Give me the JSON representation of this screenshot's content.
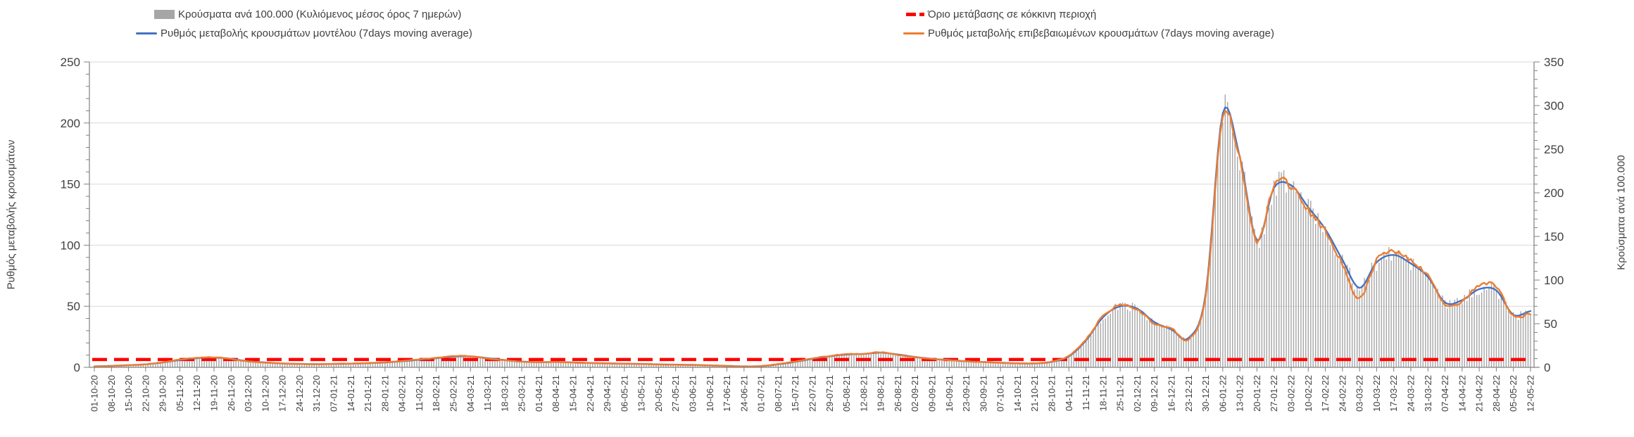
{
  "chart_data": {
    "type": "bar",
    "note": "Composite chart: daily bars (cases per 100.000, 7-day rolling average, right axis) with two 7-day moving-average rate-of-change lines (left axis) and a constant red threshold line. Values below are read at weekly resolution at each x tick label.",
    "categories": [
      "01-10-20",
      "08-10-20",
      "15-10-20",
      "22-10-20",
      "29-10-20",
      "05-11-20",
      "12-11-20",
      "19-11-20",
      "26-11-20",
      "03-12-20",
      "10-12-20",
      "17-12-20",
      "24-12-20",
      "31-12-20",
      "07-01-21",
      "14-01-21",
      "21-01-21",
      "28-01-21",
      "04-02-21",
      "11-02-21",
      "18-02-21",
      "25-02-21",
      "04-03-21",
      "11-03-21",
      "18-03-21",
      "25-03-21",
      "01-04-21",
      "08-04-21",
      "15-04-21",
      "22-04-21",
      "29-04-21",
      "06-05-21",
      "13-05-21",
      "20-05-21",
      "27-05-21",
      "03-06-21",
      "10-06-21",
      "17-06-21",
      "24-06-21",
      "01-07-21",
      "08-07-21",
      "15-07-21",
      "22-07-21",
      "29-07-21",
      "05-08-21",
      "12-08-21",
      "19-08-21",
      "26-08-21",
      "02-09-21",
      "09-09-21",
      "16-09-21",
      "23-09-21",
      "30-09-21",
      "07-10-21",
      "14-10-21",
      "21-10-21",
      "28-10-21",
      "04-11-21",
      "11-11-21",
      "18-11-21",
      "25-11-21",
      "02-12-21",
      "09-12-21",
      "16-12-21",
      "23-12-21",
      "30-12-21",
      "06-01-22",
      "13-01-22",
      "20-01-22",
      "27-01-22",
      "03-02-22",
      "10-02-22",
      "17-02-22",
      "24-02-22",
      "03-03-22",
      "10-03-22",
      "17-03-22",
      "24-03-22",
      "31-03-22",
      "07-04-22",
      "14-04-22",
      "21-04-22",
      "28-04-22",
      "05-05-22",
      "12-05-22"
    ],
    "series": [
      {
        "name": "Κρούσματα ανά 100.000 (Κυλιόμενος μέσος όρος 7 ημερών)",
        "type": "bar",
        "axis": "right",
        "color": "#a6a6a6",
        "values": [
          1,
          1.7,
          2.5,
          3.5,
          5.5,
          8.5,
          10.5,
          11,
          9.8,
          7,
          5.5,
          4.5,
          4,
          3.6,
          4,
          4.2,
          4.8,
          5.6,
          7,
          8.7,
          10.5,
          12.3,
          12.6,
          10.5,
          8.4,
          6.7,
          5.9,
          6.2,
          5.6,
          5,
          4.6,
          4.2,
          3.9,
          3.4,
          3.1,
          2.8,
          2.2,
          1.7,
          1.1,
          1.4,
          3.5,
          6.3,
          9.8,
          12.6,
          14.7,
          15.4,
          16.8,
          14.7,
          11.9,
          9.8,
          8.4,
          7,
          6.2,
          5.3,
          4.6,
          4.5,
          6.3,
          12.6,
          30.8,
          57,
          70,
          67,
          52,
          43,
          34,
          84,
          292,
          241,
          146,
          206,
          209,
          183,
          158,
          123,
          91,
          120,
          129,
          119,
          104,
          74,
          77,
          90,
          88,
          60,
          64
        ]
      },
      {
        "name": "Όριο μετάβασης σε κόκκινη περιοχή",
        "type": "threshold",
        "axis": "right",
        "color": "#ff0000",
        "value": 9
      },
      {
        "name": "Ρυθμός μεταβολής κρουσμάτων μοντέλου (7days moving average)",
        "type": "line",
        "axis": "left",
        "color": "#4472c4",
        "values": [
          0.8,
          1.2,
          1.8,
          2.5,
          4,
          6,
          7.5,
          8,
          7,
          5,
          4,
          3.2,
          2.8,
          2.6,
          2.8,
          3,
          3.4,
          4,
          5,
          6.2,
          7.5,
          8.8,
          9,
          7.5,
          6,
          4.8,
          4.2,
          4.4,
          4,
          3.6,
          3.3,
          3,
          2.8,
          2.4,
          2.2,
          2,
          1.6,
          1.2,
          0.8,
          1,
          2.5,
          4.5,
          7,
          9,
          10.5,
          11,
          12,
          10.5,
          8.5,
          7,
          6,
          5,
          4.4,
          3.8,
          3.3,
          3.2,
          4.5,
          9,
          22,
          41,
          50,
          48,
          37,
          31,
          24,
          60,
          208,
          172,
          104,
          147,
          149,
          131,
          113,
          88,
          65,
          86,
          92,
          85,
          74,
          53,
          55,
          64,
          63,
          43,
          46
        ]
      },
      {
        "name": "Ρυθμός μεταβολής επιβεβαιωμένων κρουσμάτων (7days moving average)",
        "type": "line",
        "axis": "left",
        "color": "#ed7d31",
        "values": [
          0.7,
          1.1,
          1.7,
          2.4,
          4.2,
          6.3,
          7.8,
          8.2,
          6.8,
          4.8,
          3.9,
          3.1,
          2.7,
          2.5,
          2.9,
          3.1,
          3.5,
          4.2,
          5.2,
          6.5,
          7.8,
          9.2,
          9,
          7.2,
          5.8,
          4.6,
          4.3,
          4.5,
          3.9,
          3.5,
          3.2,
          2.9,
          2.7,
          2.3,
          2.1,
          1.9,
          1.5,
          1.1,
          0.7,
          1.1,
          2.7,
          4.8,
          7.3,
          9.3,
          10.8,
          10.9,
          12.3,
          10.2,
          8.3,
          6.8,
          5.9,
          4.9,
          4.3,
          3.7,
          3.2,
          3.3,
          4.7,
          9.5,
          23,
          42,
          51,
          47,
          36,
          32,
          23,
          58,
          204,
          170,
          103,
          149,
          148,
          129,
          111,
          84,
          56,
          88,
          95,
          87,
          75,
          51,
          54,
          67,
          66,
          42,
          44
        ]
      }
    ],
    "left_axis": {
      "label": "Ρυθμός μεταβολής κρουσμάτων",
      "min": 0,
      "max": 250,
      "step": 50,
      "minor_step": 10
    },
    "right_axis": {
      "label": "Κρούσματα ανά 100.000",
      "min": 0,
      "max": 350,
      "step": 50,
      "minor_step": 10
    },
    "x_axis": {
      "tick_interval": "weekly",
      "label_rotation_deg": -90
    },
    "grid": {
      "horizontal": true,
      "color": "#d9d9d9"
    },
    "legend_position": "top"
  },
  "legend": {
    "rows": 2,
    "columns": 2
  }
}
